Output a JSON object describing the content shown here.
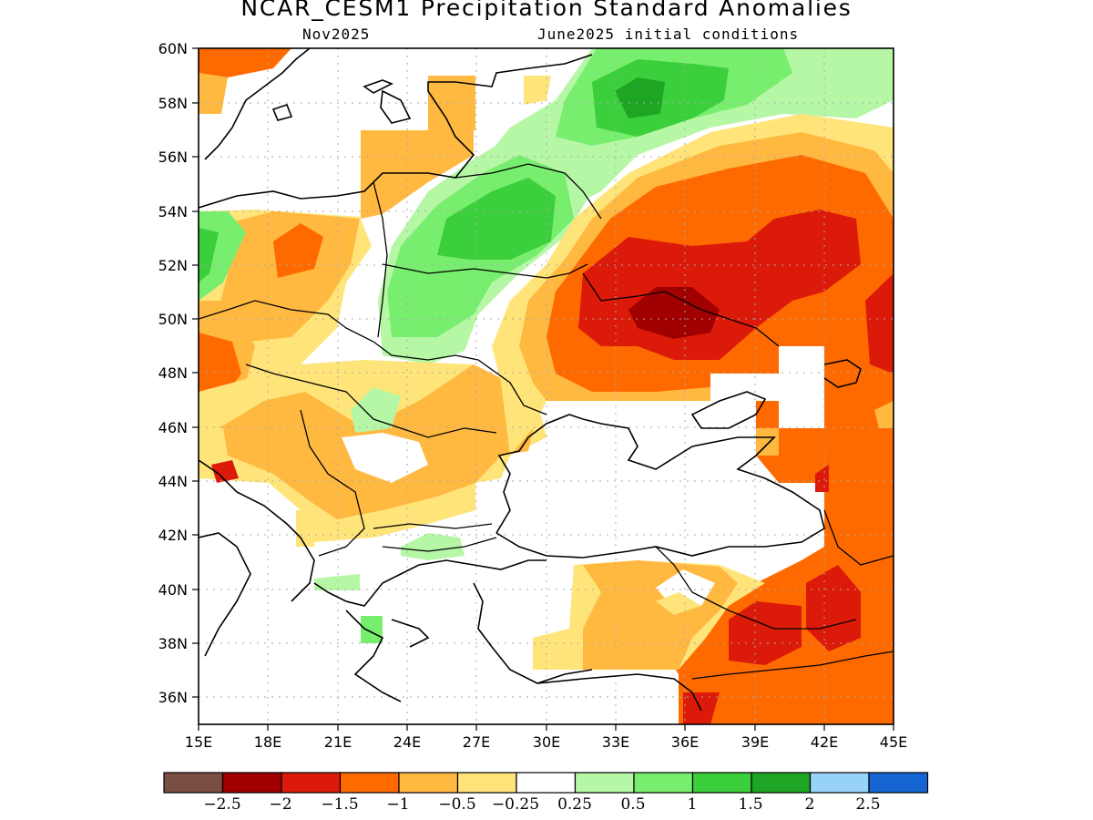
{
  "title": "NCAR_CESM1 Precipitation Standard Anomalies",
  "subtitle_left": "Nov2025",
  "subtitle_right": "June2025 initial conditions",
  "lat_labels": [
    "60N",
    "58N",
    "56N",
    "54N",
    "52N",
    "50N",
    "48N",
    "46N",
    "44N",
    "42N",
    "40N",
    "38N",
    "36N"
  ],
  "lon_labels": [
    "15E",
    "18E",
    "21E",
    "24E",
    "27E",
    "30E",
    "33E",
    "36E",
    "39E",
    "42E",
    "45E"
  ],
  "colorbar": {
    "labels": [
      "−2.5",
      "−2",
      "−1.5",
      "−1",
      "−0.5",
      "−0.25",
      "0.25",
      "0.5",
      "1",
      "1.5",
      "2",
      "2.5"
    ],
    "colors": [
      "#7a4e42",
      "#a10000",
      "#dc1a0a",
      "#ff6a00",
      "#ffb840",
      "#ffe47a",
      "#ffffff",
      "#b6f7a6",
      "#78ee6e",
      "#3ccf3c",
      "#1ea524",
      "#96d2fa",
      "#1464d2"
    ]
  },
  "map_extent": {
    "lon": [
      15,
      45
    ],
    "lat": [
      35,
      60
    ]
  }
}
